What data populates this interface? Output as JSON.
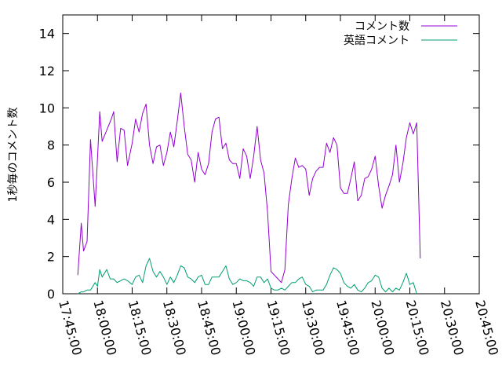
{
  "chart_data": {
    "type": "line",
    "title": "",
    "xlabel": "",
    "ylabel": "1秒毎のコメント数",
    "ylim": [
      0,
      15
    ],
    "yticks": [
      "0",
      "2",
      "4",
      "6",
      "8",
      "10",
      "12",
      "14"
    ],
    "xlim": [
      "17:45:00",
      "20:45:00"
    ],
    "xticks": [
      "17:45:00",
      "18:00:00",
      "18:15:00",
      "18:30:00",
      "18:45:00",
      "19:00:00",
      "19:15:00",
      "19:30:00",
      "19:45:00",
      "20:00:00",
      "20:15:00",
      "20:30:00",
      "20:45:00"
    ],
    "grid": false,
    "legend_position": "top-right",
    "series": [
      {
        "name": "コメント数",
        "color": "#9400d3",
        "points": [
          [
            "17:51:30",
            1.0
          ],
          [
            "17:53:00",
            3.8
          ],
          [
            "17:54:00",
            2.3
          ],
          [
            "17:55:30",
            2.8
          ],
          [
            "17:57:00",
            8.3
          ],
          [
            "17:59:00",
            4.7
          ],
          [
            "18:01:00",
            9.8
          ],
          [
            "18:02:00",
            8.2
          ],
          [
            "18:04:00",
            8.8
          ],
          [
            "18:06:00",
            9.4
          ],
          [
            "18:07:00",
            9.8
          ],
          [
            "18:08:30",
            7.1
          ],
          [
            "18:10:00",
            8.9
          ],
          [
            "18:11:30",
            8.8
          ],
          [
            "18:13:00",
            6.9
          ],
          [
            "18:15:00",
            8.1
          ],
          [
            "18:16:30",
            9.4
          ],
          [
            "18:18:00",
            8.7
          ],
          [
            "18:19:30",
            9.7
          ],
          [
            "18:21:00",
            10.2
          ],
          [
            "18:22:30",
            8.0
          ],
          [
            "18:24:00",
            7.0
          ],
          [
            "18:25:30",
            7.9
          ],
          [
            "18:27:00",
            8.0
          ],
          [
            "18:28:30",
            6.9
          ],
          [
            "18:30:00",
            7.6
          ],
          [
            "18:31:30",
            8.7
          ],
          [
            "18:33:00",
            7.9
          ],
          [
            "18:34:30",
            9.3
          ],
          [
            "18:36:00",
            10.8
          ],
          [
            "18:37:30",
            9.0
          ],
          [
            "18:39:00",
            7.5
          ],
          [
            "18:40:30",
            7.2
          ],
          [
            "18:42:00",
            6.0
          ],
          [
            "18:43:30",
            7.6
          ],
          [
            "18:45:00",
            6.7
          ],
          [
            "18:46:30",
            6.4
          ],
          [
            "18:48:00",
            7.0
          ],
          [
            "18:49:30",
            8.7
          ],
          [
            "18:51:00",
            9.4
          ],
          [
            "18:52:30",
            9.5
          ],
          [
            "18:54:00",
            7.8
          ],
          [
            "18:55:30",
            8.1
          ],
          [
            "18:57:00",
            7.2
          ],
          [
            "18:58:30",
            7.0
          ],
          [
            "19:00:00",
            7.0
          ],
          [
            "19:01:30",
            6.2
          ],
          [
            "19:03:00",
            7.8
          ],
          [
            "19:04:30",
            7.4
          ],
          [
            "19:06:00",
            6.2
          ],
          [
            "19:07:30",
            7.4
          ],
          [
            "19:09:00",
            9.0
          ],
          [
            "19:10:30",
            7.2
          ],
          [
            "19:12:00",
            6.5
          ],
          [
            "19:13:30",
            4.4
          ],
          [
            "19:15:00",
            1.2
          ],
          [
            "19:16:30",
            1.0
          ],
          [
            "19:18:00",
            0.8
          ],
          [
            "19:19:30",
            0.6
          ],
          [
            "19:21:00",
            1.3
          ],
          [
            "19:22:30",
            4.8
          ],
          [
            "19:24:00",
            6.2
          ],
          [
            "19:25:30",
            7.3
          ],
          [
            "19:27:00",
            6.8
          ],
          [
            "19:28:30",
            6.9
          ],
          [
            "19:30:00",
            6.7
          ],
          [
            "19:31:30",
            5.3
          ],
          [
            "19:33:00",
            6.2
          ],
          [
            "19:34:30",
            6.6
          ],
          [
            "19:36:00",
            6.8
          ],
          [
            "19:37:30",
            6.8
          ],
          [
            "19:39:00",
            8.1
          ],
          [
            "19:40:30",
            7.6
          ],
          [
            "19:42:00",
            8.4
          ],
          [
            "19:43:30",
            8.0
          ],
          [
            "19:45:00",
            5.7
          ],
          [
            "19:46:30",
            5.4
          ],
          [
            "19:48:00",
            5.4
          ],
          [
            "19:49:30",
            6.2
          ],
          [
            "19:51:00",
            7.1
          ],
          [
            "19:52:30",
            5.0
          ],
          [
            "19:54:00",
            5.3
          ],
          [
            "19:55:30",
            6.2
          ],
          [
            "19:57:00",
            6.3
          ],
          [
            "19:58:30",
            6.7
          ],
          [
            "20:00:00",
            7.4
          ],
          [
            "20:01:30",
            5.8
          ],
          [
            "20:03:00",
            4.6
          ],
          [
            "20:04:30",
            5.3
          ],
          [
            "20:06:00",
            5.8
          ],
          [
            "20:07:30",
            6.4
          ],
          [
            "20:09:00",
            8.0
          ],
          [
            "20:10:30",
            6.0
          ],
          [
            "20:12:00",
            7.0
          ],
          [
            "20:13:30",
            8.4
          ],
          [
            "20:15:00",
            9.2
          ],
          [
            "20:16:30",
            8.6
          ],
          [
            "20:18:00",
            9.2
          ],
          [
            "20:19:30",
            1.9
          ]
        ]
      },
      {
        "name": "英語コメント",
        "color": "#009e73",
        "points": [
          [
            "17:51:30",
            0.0
          ],
          [
            "17:53:00",
            0.1
          ],
          [
            "17:54:00",
            0.1
          ],
          [
            "17:55:30",
            0.2
          ],
          [
            "17:57:00",
            0.2
          ],
          [
            "17:59:00",
            0.6
          ],
          [
            "18:00:00",
            0.4
          ],
          [
            "18:01:00",
            1.3
          ],
          [
            "18:02:00",
            0.9
          ],
          [
            "18:04:00",
            1.3
          ],
          [
            "18:05:30",
            0.8
          ],
          [
            "18:07:00",
            0.8
          ],
          [
            "18:08:30",
            0.6
          ],
          [
            "18:10:00",
            0.7
          ],
          [
            "18:11:30",
            0.8
          ],
          [
            "18:13:00",
            0.7
          ],
          [
            "18:15:00",
            0.5
          ],
          [
            "18:16:30",
            0.9
          ],
          [
            "18:18:00",
            1.0
          ],
          [
            "18:19:30",
            0.6
          ],
          [
            "18:21:00",
            1.5
          ],
          [
            "18:22:30",
            1.9
          ],
          [
            "18:24:00",
            1.2
          ],
          [
            "18:25:30",
            0.9
          ],
          [
            "18:27:00",
            1.2
          ],
          [
            "18:28:30",
            0.9
          ],
          [
            "18:30:00",
            0.5
          ],
          [
            "18:31:30",
            0.9
          ],
          [
            "18:33:00",
            0.6
          ],
          [
            "18:34:30",
            1.0
          ],
          [
            "18:36:00",
            1.5
          ],
          [
            "18:37:30",
            1.4
          ],
          [
            "18:39:00",
            0.9
          ],
          [
            "18:40:30",
            0.8
          ],
          [
            "18:42:00",
            0.6
          ],
          [
            "18:43:30",
            0.9
          ],
          [
            "18:45:00",
            1.0
          ],
          [
            "18:46:30",
            0.5
          ],
          [
            "18:48:00",
            0.5
          ],
          [
            "18:49:30",
            0.9
          ],
          [
            "18:51:00",
            0.9
          ],
          [
            "18:52:30",
            0.9
          ],
          [
            "18:54:00",
            1.2
          ],
          [
            "18:55:30",
            1.5
          ],
          [
            "18:57:00",
            0.8
          ],
          [
            "18:58:30",
            0.5
          ],
          [
            "19:00:00",
            0.6
          ],
          [
            "19:01:30",
            0.8
          ],
          [
            "19:03:00",
            0.7
          ],
          [
            "19:04:30",
            0.7
          ],
          [
            "19:06:00",
            0.6
          ],
          [
            "19:07:30",
            0.4
          ],
          [
            "19:09:00",
            0.9
          ],
          [
            "19:10:30",
            0.9
          ],
          [
            "19:12:00",
            0.6
          ],
          [
            "19:13:30",
            0.8
          ],
          [
            "19:15:00",
            0.3
          ],
          [
            "19:16:30",
            0.2
          ],
          [
            "19:18:00",
            0.2
          ],
          [
            "19:19:30",
            0.3
          ],
          [
            "19:21:00",
            0.2
          ],
          [
            "19:22:30",
            0.4
          ],
          [
            "19:24:00",
            0.6
          ],
          [
            "19:25:30",
            0.6
          ],
          [
            "19:27:00",
            0.8
          ],
          [
            "19:28:30",
            0.9
          ],
          [
            "19:30:00",
            0.5
          ],
          [
            "19:31:30",
            0.4
          ],
          [
            "19:33:00",
            0.1
          ],
          [
            "19:34:30",
            0.2
          ],
          [
            "19:36:00",
            0.2
          ],
          [
            "19:37:30",
            0.2
          ],
          [
            "19:39:00",
            0.5
          ],
          [
            "19:40:30",
            1.0
          ],
          [
            "19:42:00",
            1.4
          ],
          [
            "19:43:30",
            1.3
          ],
          [
            "19:45:00",
            1.1
          ],
          [
            "19:46:30",
            0.6
          ],
          [
            "19:48:00",
            0.4
          ],
          [
            "19:49:30",
            0.3
          ],
          [
            "19:51:00",
            0.5
          ],
          [
            "19:52:30",
            0.2
          ],
          [
            "19:54:00",
            0.1
          ],
          [
            "19:55:30",
            0.3
          ],
          [
            "19:57:00",
            0.6
          ],
          [
            "19:58:30",
            0.7
          ],
          [
            "20:00:00",
            1.0
          ],
          [
            "20:01:30",
            0.9
          ],
          [
            "20:03:00",
            0.3
          ],
          [
            "20:04:30",
            0.1
          ],
          [
            "20:06:00",
            0.3
          ],
          [
            "20:07:30",
            0.1
          ],
          [
            "20:09:00",
            0.3
          ],
          [
            "20:10:30",
            0.2
          ],
          [
            "20:12:00",
            0.6
          ],
          [
            "20:13:30",
            1.1
          ],
          [
            "20:15:00",
            0.5
          ],
          [
            "20:16:30",
            0.6
          ],
          [
            "20:18:00",
            0.0
          ]
        ]
      }
    ]
  }
}
